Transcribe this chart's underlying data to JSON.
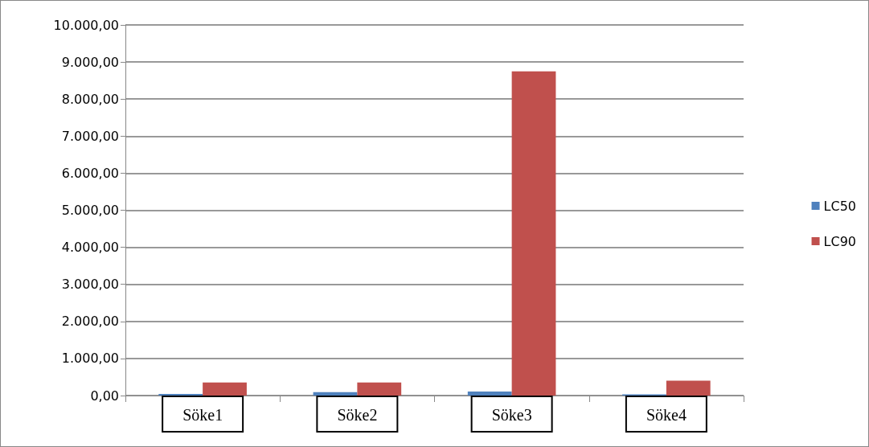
{
  "chart_data": {
    "type": "bar",
    "categories": [
      "Söke1",
      "Söke2",
      "Söke3",
      "Söke4"
    ],
    "series": [
      {
        "name": "LC50",
        "color": "#4f81bd",
        "values": [
          45,
          90,
          110,
          30
        ]
      },
      {
        "name": "LC90",
        "color": "#c0504d",
        "values": [
          355,
          355,
          8750,
          400
        ]
      }
    ],
    "ylim": [
      0,
      10000
    ],
    "yticks": [
      {
        "value": 0,
        "label": "0,00"
      },
      {
        "value": 1000,
        "label": "1.000,00"
      },
      {
        "value": 2000,
        "label": "2.000,00"
      },
      {
        "value": 3000,
        "label": "3.000,00"
      },
      {
        "value": 4000,
        "label": "4.000,00"
      },
      {
        "value": 5000,
        "label": "5.000,00"
      },
      {
        "value": 6000,
        "label": "6.000,00"
      },
      {
        "value": 7000,
        "label": "7.000,00"
      },
      {
        "value": 8000,
        "label": "8.000,00"
      },
      {
        "value": 9000,
        "label": "9.000,00"
      },
      {
        "value": 10000,
        "label": "10.000,00"
      }
    ],
    "grid": "y",
    "legend": "right"
  }
}
